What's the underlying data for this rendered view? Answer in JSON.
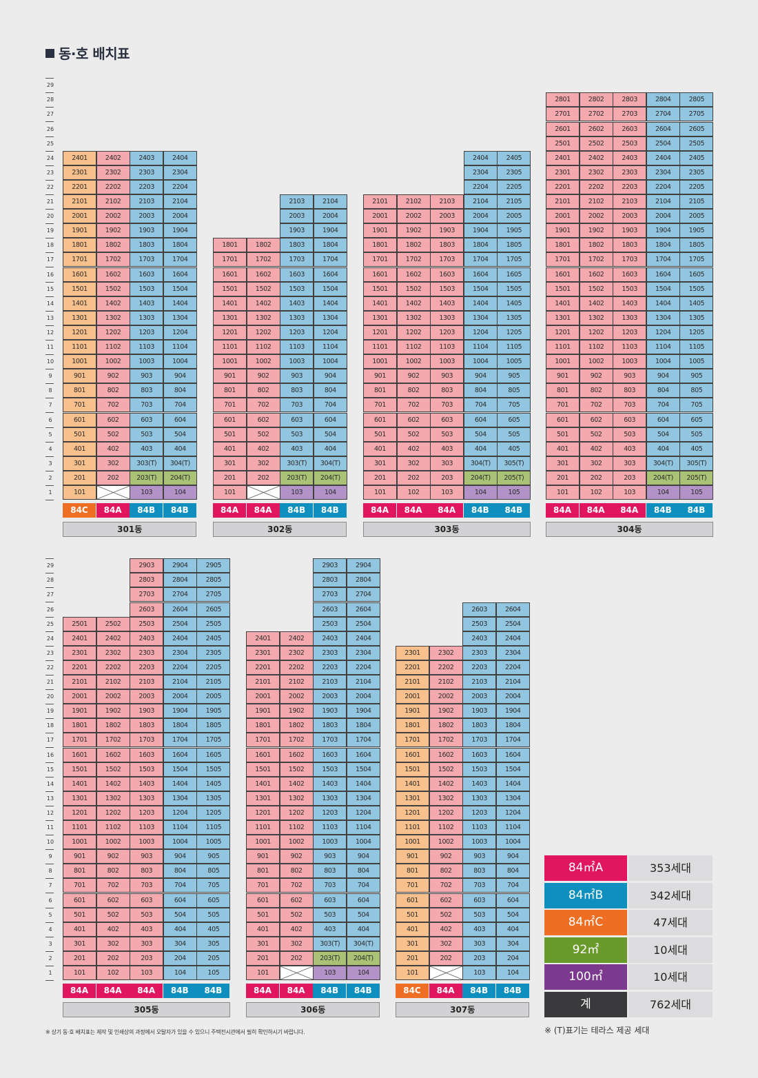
{
  "title": "동·호 배치표",
  "floors_label_max": 29,
  "buildings": [
    {
      "name": "301동",
      "units": [
        {
          "prefix": "01",
          "top": 24,
          "types": {
            "1": "84C",
            "2": "84C",
            "3": "84C",
            "default": "84C"
          },
          "first": "101"
        },
        {
          "prefix": "02",
          "top": 24,
          "types": {
            "1": "X",
            "default": "84A"
          }
        },
        {
          "prefix": "03",
          "top": 24,
          "types": {
            "1": "100",
            "2": "92",
            "default": "84B"
          },
          "labels": {
            "1": "103",
            "2": "203(T)",
            "3": "303(T)"
          }
        },
        {
          "prefix": "04",
          "top": 24,
          "types": {
            "1": "100",
            "2": "92",
            "default": "84B"
          },
          "labels": {
            "1": "104",
            "2": "204(T)",
            "3": "304(T)"
          }
        }
      ],
      "typebar": [
        "84C",
        "84A",
        "84B",
        "84B"
      ]
    },
    {
      "name": "302동",
      "units": [
        {
          "prefix": "01",
          "top": 18,
          "types": {
            "default": "84A"
          }
        },
        {
          "prefix": "02",
          "top": 18,
          "types": {
            "1": "X",
            "default": "84A"
          }
        },
        {
          "prefix": "03",
          "top": 21,
          "types": {
            "1": "100",
            "2": "92",
            "default": "84B"
          },
          "labels": {
            "2": "203(T)",
            "3": "303(T)"
          }
        },
        {
          "prefix": "04",
          "top": 21,
          "types": {
            "1": "100",
            "2": "92",
            "default": "84B"
          },
          "labels": {
            "2": "204(T)",
            "3": "304(T)"
          }
        }
      ],
      "typebar": [
        "84A",
        "84A",
        "84B",
        "84B"
      ]
    },
    {
      "name": "303동",
      "units": [
        {
          "prefix": "01",
          "top": 21,
          "types": {
            "default": "84A"
          }
        },
        {
          "prefix": "02",
          "top": 21,
          "types": {
            "default": "84A"
          }
        },
        {
          "prefix": "03",
          "top": 21,
          "types": {
            "default": "84A"
          }
        },
        {
          "prefix": "04",
          "top": 24,
          "types": {
            "1": "100",
            "2": "92",
            "default": "84B"
          },
          "labels": {
            "2": "204(T)",
            "3": "304(T)"
          }
        },
        {
          "prefix": "05",
          "top": 24,
          "types": {
            "1": "100",
            "2": "92",
            "default": "84B"
          },
          "labels": {
            "2": "205(T)",
            "3": "305(T)"
          }
        }
      ],
      "typebar": [
        "84A",
        "84A",
        "84A",
        "84B",
        "84B"
      ]
    },
    {
      "name": "304동",
      "units": [
        {
          "prefix": "01",
          "top": 28,
          "types": {
            "default": "84A"
          }
        },
        {
          "prefix": "02",
          "top": 28,
          "types": {
            "default": "84A"
          }
        },
        {
          "prefix": "03",
          "top": 28,
          "types": {
            "default": "84A"
          }
        },
        {
          "prefix": "04",
          "top": 28,
          "types": {
            "1": "100",
            "2": "92",
            "default": "84B"
          },
          "labels": {
            "2": "204(T)",
            "3": "304(T)"
          }
        },
        {
          "prefix": "05",
          "top": 28,
          "types": {
            "1": "100",
            "2": "92",
            "default": "84B"
          },
          "labels": {
            "2": "205(T)",
            "3": "305(T)"
          }
        }
      ],
      "typebar": [
        "84A",
        "84A",
        "84A",
        "84B",
        "84B"
      ]
    },
    {
      "name": "305동",
      "units": [
        {
          "prefix": "01",
          "top": 25,
          "types": {
            "default": "84A"
          }
        },
        {
          "prefix": "02",
          "top": 25,
          "types": {
            "default": "84A"
          }
        },
        {
          "prefix": "03",
          "top": 29,
          "types": {
            "default": "84A"
          }
        },
        {
          "prefix": "04",
          "top": 29,
          "types": {
            "default": "84B"
          }
        },
        {
          "prefix": "05",
          "top": 29,
          "types": {
            "default": "84B"
          }
        }
      ],
      "typebar": [
        "84A",
        "84A",
        "84A",
        "84B",
        "84B"
      ]
    },
    {
      "name": "306동",
      "units": [
        {
          "prefix": "01",
          "top": 24,
          "types": {
            "default": "84A"
          }
        },
        {
          "prefix": "02",
          "top": 24,
          "types": {
            "1": "X",
            "default": "84A"
          }
        },
        {
          "prefix": "03",
          "top": 29,
          "types": {
            "1": "100",
            "2": "92",
            "default": "84B"
          },
          "labels": {
            "2": "203(T)",
            "3": "303(T)"
          }
        },
        {
          "prefix": "04",
          "top": 29,
          "types": {
            "1": "100",
            "2": "92",
            "default": "84B"
          },
          "labels": {
            "2": "204(T)",
            "3": "304(T)"
          }
        }
      ],
      "typebar": [
        "84A",
        "84A",
        "84B",
        "84B"
      ]
    },
    {
      "name": "307동",
      "units": [
        {
          "prefix": "01",
          "top": 23,
          "types": {
            "default": "84C"
          }
        },
        {
          "prefix": "02",
          "top": 23,
          "types": {
            "1": "X",
            "default": "84A"
          }
        },
        {
          "prefix": "03",
          "top": 26,
          "types": {
            "default": "84B"
          }
        },
        {
          "prefix": "04",
          "top": 26,
          "types": {
            "default": "84B"
          }
        }
      ],
      "typebar": [
        "84C",
        "84A",
        "84B",
        "84B"
      ]
    }
  ],
  "legend": [
    {
      "label": "84㎡A",
      "count": "353세대",
      "color": "#e0165f"
    },
    {
      "label": "84㎡B",
      "count": "342세대",
      "color": "#0e8fbd"
    },
    {
      "label": "84㎡C",
      "count": "47세대",
      "color": "#ee6e23"
    },
    {
      "label": "92㎡",
      "count": "10세대",
      "color": "#6a9a2c"
    },
    {
      "label": "100㎡",
      "count": "10세대",
      "color": "#7c3a8f"
    },
    {
      "label": "계",
      "count": "762세대",
      "color": "#3a3a3c"
    }
  ],
  "note_left": "※ 상기 동·호 배치표는 제작 및 인쇄상의 과정에서 오탈자가 있을 수 있으니 주택전시관에서 필히 확인하시기 바랍니다.",
  "note_right": "※ (T)표기는 테라스 제공 세대"
}
